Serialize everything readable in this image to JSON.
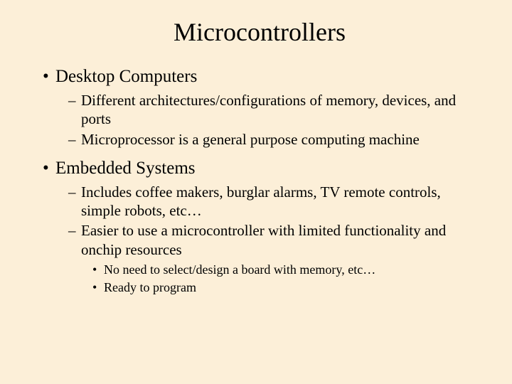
{
  "slide": {
    "title": "Microcontrollers",
    "background_color": "#fcefd8",
    "text_color": "#000000",
    "font_family": "Times New Roman",
    "title_fontsize": 36,
    "level1_fontsize": 25,
    "level2_fontsize": 21,
    "level3_fontsize": 18,
    "bullets": [
      {
        "text": "Desktop Computers",
        "children": [
          {
            "text": "Different architectures/configurations of memory, devices, and ports"
          },
          {
            "text": "Microprocessor is a general purpose computing machine"
          }
        ]
      },
      {
        "text": "Embedded Systems",
        "children": [
          {
            "text": "Includes coffee makers, burglar alarms, TV remote controls, simple robots, etc…"
          },
          {
            "text": "Easier to use a microcontroller with limited functionality and onchip resources",
            "children": [
              {
                "text": "No need to select/design a board with memory, etc…"
              },
              {
                "text": "Ready to program"
              }
            ]
          }
        ]
      }
    ]
  }
}
